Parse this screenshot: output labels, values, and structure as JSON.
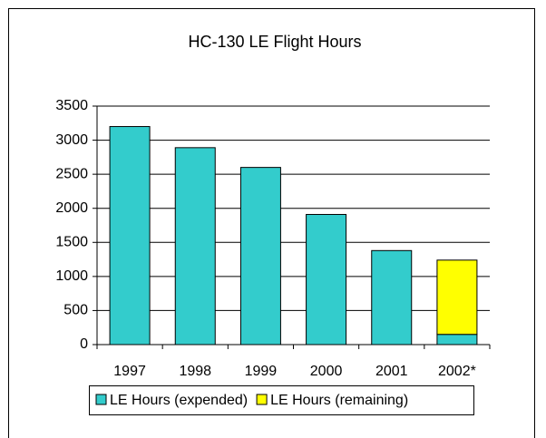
{
  "chart_data": {
    "type": "stacked_bar",
    "title": "HC-130 LE Flight Hours",
    "categories": [
      "1997",
      "1998",
      "1999",
      "2000",
      "2001",
      "2002*"
    ],
    "series": [
      {
        "name": "LE Hours (expended)",
        "color": "#33cccc",
        "values": [
          3200,
          2890,
          2600,
          1910,
          1380,
          150
        ]
      },
      {
        "name": "LE Hours (remaining)",
        "color": "#ffff00",
        "values": [
          null,
          null,
          null,
          null,
          null,
          1090
        ]
      }
    ],
    "ylim": [
      0,
      3500
    ],
    "yticks": [
      0,
      500,
      1000,
      1500,
      2000,
      2500,
      3000,
      3500
    ],
    "grid": true,
    "legend": "bottom"
  }
}
